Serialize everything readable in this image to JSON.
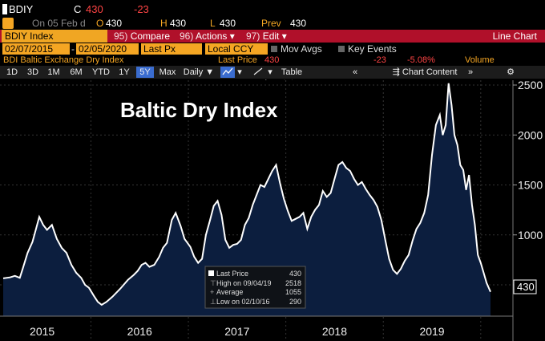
{
  "ticker": {
    "symbol": "BDIY",
    "close_label": "C",
    "close_value": "430",
    "change": "-23"
  },
  "quote": {
    "on_text": "On 05 Feb d",
    "o_label": "O",
    "o_value": "430",
    "h_label": "H",
    "h_value": "430",
    "l_label": "L",
    "l_value": "430",
    "prev_label": "Prev",
    "prev_value": "430"
  },
  "menu": {
    "security": "BDIY Index",
    "compare_num": "95)",
    "compare": "Compare",
    "actions_num": "96)",
    "actions": "Actions",
    "edit_num": "97)",
    "edit": "Edit",
    "chart_type": "Line Chart"
  },
  "range": {
    "start": "02/07/2015",
    "end": "02/05/2020",
    "field": "Last Px",
    "currency": "Local CCY",
    "mov_avgs": "Mov Avgs",
    "key_events": "Key Events"
  },
  "legend_row": {
    "name": "BDI Baltic Exchange Dry Index",
    "last_price_label": "Last Price",
    "last_price_value": "430",
    "change": "-23",
    "pct": "-5.08%",
    "volume": "Volume"
  },
  "toolbar": {
    "buttons": [
      "1D",
      "3D",
      "1M",
      "6M",
      "YTD",
      "1Y",
      "5Y",
      "Max"
    ],
    "active": "5Y",
    "period": "Daily",
    "table": "Table",
    "chart_content": "Chart Content",
    "annotate": "Annotate"
  },
  "colors": {
    "accent_orange": "#f5a623",
    "menu_red": "#b0102a",
    "line": "#ffffff",
    "fill": "#0c1e3e",
    "negative": "#ff4444",
    "active_btn": "#3a6ccf"
  },
  "chart_data": {
    "type": "area",
    "title": "Baltic Dry Index",
    "xlabel": "",
    "ylabel": "",
    "xlim": [
      2015.1,
      2020.1
    ],
    "ylim": [
      300,
      2600
    ],
    "yticks": [
      500,
      1000,
      1500,
      2000,
      2500
    ],
    "xtick_labels": [
      "2015",
      "2016",
      "2017",
      "2018",
      "2019"
    ],
    "last_value_label": "430",
    "series": [
      {
        "values": [
          [
            2015.1,
            565
          ],
          [
            2015.17,
            575
          ],
          [
            2015.22,
            590
          ],
          [
            2015.27,
            570
          ],
          [
            2015.3,
            660
          ],
          [
            2015.35,
            820
          ],
          [
            2015.4,
            930
          ],
          [
            2015.44,
            1070
          ],
          [
            2015.47,
            1180
          ],
          [
            2015.51,
            1100
          ],
          [
            2015.55,
            1050
          ],
          [
            2015.6,
            1100
          ],
          [
            2015.65,
            960
          ],
          [
            2015.7,
            870
          ],
          [
            2015.75,
            820
          ],
          [
            2015.8,
            700
          ],
          [
            2015.85,
            620
          ],
          [
            2015.9,
            570
          ],
          [
            2015.94,
            500
          ],
          [
            2015.98,
            470
          ],
          [
            2016.03,
            390
          ],
          [
            2016.07,
            330
          ],
          [
            2016.11,
            300
          ],
          [
            2016.16,
            330
          ],
          [
            2016.22,
            380
          ],
          [
            2016.3,
            460
          ],
          [
            2016.38,
            550
          ],
          [
            2016.44,
            600
          ],
          [
            2016.48,
            640
          ],
          [
            2016.52,
            700
          ],
          [
            2016.56,
            720
          ],
          [
            2016.6,
            680
          ],
          [
            2016.65,
            700
          ],
          [
            2016.7,
            780
          ],
          [
            2016.74,
            870
          ],
          [
            2016.78,
            920
          ],
          [
            2016.83,
            1150
          ],
          [
            2016.87,
            1220
          ],
          [
            2016.92,
            1090
          ],
          [
            2016.96,
            960
          ],
          [
            2017.02,
            880
          ],
          [
            2017.06,
            780
          ],
          [
            2017.1,
            720
          ],
          [
            2017.14,
            760
          ],
          [
            2017.18,
            1000
          ],
          [
            2017.22,
            1140
          ],
          [
            2017.26,
            1290
          ],
          [
            2017.3,
            1340
          ],
          [
            2017.34,
            1200
          ],
          [
            2017.38,
            950
          ],
          [
            2017.42,
            870
          ],
          [
            2017.46,
            900
          ],
          [
            2017.5,
            910
          ],
          [
            2017.54,
            950
          ],
          [
            2017.58,
            1100
          ],
          [
            2017.62,
            1170
          ],
          [
            2017.66,
            1300
          ],
          [
            2017.7,
            1400
          ],
          [
            2017.74,
            1500
          ],
          [
            2017.78,
            1480
          ],
          [
            2017.82,
            1560
          ],
          [
            2017.86,
            1640
          ],
          [
            2017.9,
            1700
          ],
          [
            2017.94,
            1520
          ],
          [
            2017.98,
            1360
          ],
          [
            2018.02,
            1240
          ],
          [
            2018.06,
            1140
          ],
          [
            2018.1,
            1160
          ],
          [
            2018.14,
            1180
          ],
          [
            2018.18,
            1220
          ],
          [
            2018.22,
            1060
          ],
          [
            2018.26,
            1180
          ],
          [
            2018.3,
            1250
          ],
          [
            2018.34,
            1300
          ],
          [
            2018.38,
            1440
          ],
          [
            2018.42,
            1380
          ],
          [
            2018.46,
            1420
          ],
          [
            2018.5,
            1560
          ],
          [
            2018.54,
            1700
          ],
          [
            2018.58,
            1730
          ],
          [
            2018.62,
            1670
          ],
          [
            2018.66,
            1640
          ],
          [
            2018.7,
            1560
          ],
          [
            2018.74,
            1500
          ],
          [
            2018.78,
            1530
          ],
          [
            2018.82,
            1460
          ],
          [
            2018.86,
            1400
          ],
          [
            2018.9,
            1350
          ],
          [
            2018.94,
            1280
          ],
          [
            2018.98,
            1150
          ],
          [
            2019.02,
            950
          ],
          [
            2019.06,
            760
          ],
          [
            2019.1,
            650
          ],
          [
            2019.14,
            610
          ],
          [
            2019.18,
            660
          ],
          [
            2019.22,
            740
          ],
          [
            2019.26,
            800
          ],
          [
            2019.3,
            940
          ],
          [
            2019.34,
            1060
          ],
          [
            2019.38,
            1120
          ],
          [
            2019.42,
            1220
          ],
          [
            2019.46,
            1400
          ],
          [
            2019.5,
            1800
          ],
          [
            2019.54,
            2100
          ],
          [
            2019.58,
            2200
          ],
          [
            2019.61,
            2000
          ],
          [
            2019.64,
            2100
          ],
          [
            2019.67,
            2518
          ],
          [
            2019.7,
            2300
          ],
          [
            2019.73,
            2000
          ],
          [
            2019.76,
            1900
          ],
          [
            2019.79,
            1700
          ],
          [
            2019.82,
            1650
          ],
          [
            2019.85,
            1450
          ],
          [
            2019.88,
            1600
          ],
          [
            2019.91,
            1300
          ],
          [
            2019.94,
            1100
          ],
          [
            2019.97,
            800
          ],
          [
            2020.0,
            720
          ],
          [
            2020.03,
            620
          ],
          [
            2020.06,
            520
          ],
          [
            2020.1,
            430
          ]
        ]
      }
    ],
    "stats": {
      "last_price_label": "Last Price",
      "last_price": "430",
      "high_label": "High on 09/04/19",
      "high": "2518",
      "average_label": "Average",
      "average": "1055",
      "low_label": "Low on 02/10/16",
      "low": "290"
    }
  }
}
